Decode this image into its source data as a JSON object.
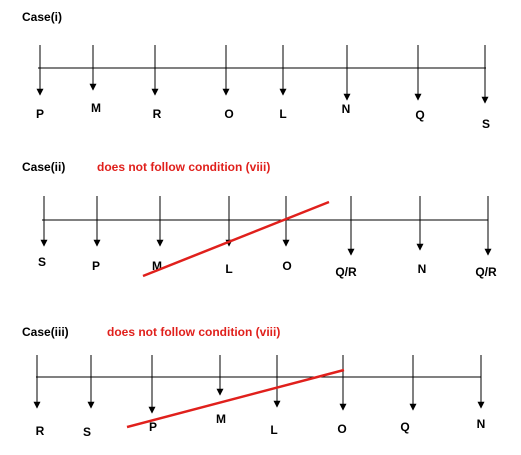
{
  "cases": [
    {
      "title": "Case(i)",
      "labels": [
        "P",
        "M",
        "R",
        "O",
        "L",
        "N",
        "Q",
        "S"
      ]
    },
    {
      "title": "Case(ii)",
      "note": "does not follow condition (viii)",
      "labels": [
        "S",
        "P",
        "M",
        "L",
        "O",
        "Q/R",
        "N",
        "Q/R"
      ]
    },
    {
      "title": "Case(iii)",
      "note": "does not follow condition (viii)",
      "labels": [
        "R",
        "S",
        "P",
        "M",
        "L",
        "O",
        "Q",
        "N"
      ]
    }
  ]
}
